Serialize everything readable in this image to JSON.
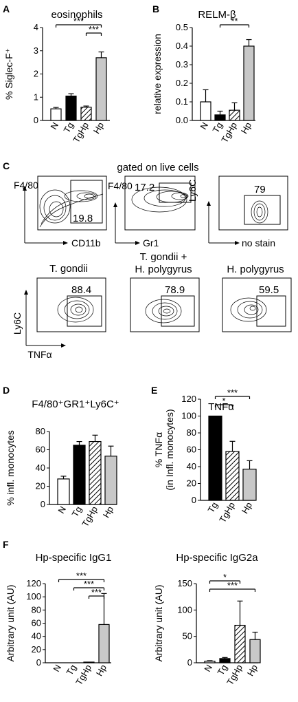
{
  "panel_letters": {
    "A": "A",
    "B": "B",
    "C": "C",
    "D": "D",
    "E": "E",
    "F": "F"
  },
  "chart_data": [
    {
      "id": "A",
      "type": "bar",
      "title": "eosinophils",
      "ylabel": "% Siglec-F⁺",
      "xlabel": "",
      "categories": [
        "N",
        "Tg",
        "TgHp",
        "Hp"
      ],
      "values": [
        0.5,
        1.05,
        0.57,
        2.7
      ],
      "errors": [
        0.06,
        0.1,
        0.05,
        0.25
      ],
      "fills": [
        "white",
        "black",
        "hatch",
        "#c8c8c8"
      ],
      "ylim": [
        0,
        4
      ],
      "yticks": [
        0,
        1,
        2,
        3,
        4
      ],
      "significance": [
        {
          "from": 0,
          "to": 3,
          "label": "***"
        },
        {
          "from": 2,
          "to": 3,
          "label": "***"
        }
      ]
    },
    {
      "id": "B",
      "type": "bar",
      "title": "RELM-β",
      "ylabel": "relative expression",
      "xlabel": "",
      "categories": [
        "N",
        "Tg",
        "TgHp",
        "Hp"
      ],
      "values": [
        0.1,
        0.03,
        0.055,
        0.4
      ],
      "errors": [
        0.065,
        0.02,
        0.04,
        0.035
      ],
      "fills": [
        "white",
        "black",
        "hatch",
        "#c8c8c8"
      ],
      "ylim": [
        0,
        0.5
      ],
      "yticks": [
        0.0,
        0.1,
        0.2,
        0.3,
        0.4,
        0.5
      ],
      "significance": [
        {
          "from": 1,
          "to": 3,
          "label": "**"
        }
      ]
    },
    {
      "id": "D",
      "type": "bar",
      "title": "F4/80⁺GR1⁺Ly6C⁺",
      "ylabel": "% infl. monocytes",
      "xlabel": "",
      "categories": [
        "N",
        "Tg",
        "TgHp",
        "Hp"
      ],
      "values": [
        28,
        65,
        69,
        53
      ],
      "errors": [
        3,
        4,
        7,
        11
      ],
      "fills": [
        "white",
        "black",
        "hatch",
        "#c8c8c8"
      ],
      "ylim": [
        0,
        80
      ],
      "yticks": [
        0,
        20,
        40,
        60,
        80
      ],
      "significance": []
    },
    {
      "id": "E",
      "type": "bar",
      "title": "TNFα",
      "ylabel": "% TNFα",
      "ylabel2": "(in Infl. monocytes)",
      "xlabel": "",
      "categories": [
        "Tg",
        "TgHp",
        "Hp"
      ],
      "values": [
        100,
        58,
        37
      ],
      "errors": [
        0,
        12,
        10
      ],
      "fills": [
        "black",
        "hatch",
        "#c8c8c8"
      ],
      "ylim": [
        0,
        120
      ],
      "yticks": [
        0,
        20,
        40,
        60,
        80,
        100,
        120
      ],
      "significance": [
        {
          "from": 0,
          "to": 2,
          "label": "***"
        },
        {
          "from": 0,
          "to": 1,
          "label": "*"
        }
      ]
    },
    {
      "id": "F1",
      "type": "bar",
      "title": "Hp-specific IgG1",
      "ylabel": "Arbitrary unit (AU)",
      "xlabel": "",
      "categories": [
        "N",
        "Tg",
        "TgHp",
        "Hp"
      ],
      "values": [
        0,
        0,
        0.5,
        58
      ],
      "errors": [
        0,
        0,
        0,
        47
      ],
      "fills": [
        "white",
        "black",
        "hatch",
        "#c8c8c8"
      ],
      "ylim": [
        0,
        120
      ],
      "yticks": [
        0,
        20,
        40,
        60,
        80,
        100,
        120
      ],
      "significance": [
        {
          "from": 0,
          "to": 3,
          "label": "***"
        },
        {
          "from": 1,
          "to": 3,
          "label": "***"
        },
        {
          "from": 2,
          "to": 3,
          "label": "***"
        }
      ]
    },
    {
      "id": "F2",
      "type": "bar",
      "title": "Hp-specific IgG2a",
      "ylabel": "Arbitrary unit (AU)",
      "xlabel": "",
      "categories": [
        "N",
        "Tg",
        "TgHp",
        "Hp"
      ],
      "values": [
        3,
        8,
        71,
        44
      ],
      "errors": [
        1,
        2,
        46,
        14
      ],
      "fills": [
        "white",
        "black",
        "hatch",
        "#c8c8c8"
      ],
      "ylim": [
        0,
        150
      ],
      "yticks": [
        0,
        50,
        100,
        150
      ],
      "significance": [
        {
          "from": 0,
          "to": 2,
          "label": "*"
        },
        {
          "from": 0,
          "to": 3,
          "label": "***"
        }
      ]
    }
  ],
  "flow": {
    "title": "gated on live cells",
    "plots": [
      {
        "id": "c1",
        "ylabel": "F4/80",
        "xlabel": "CD11b",
        "value": "19.8"
      },
      {
        "id": "c2",
        "ylabel": "F4/80",
        "xlabel": "Gr1",
        "value": "17.2"
      },
      {
        "id": "c3",
        "ylabel": "Ly6C",
        "xlabel": "no stain",
        "value": "79"
      },
      {
        "id": "c4",
        "title": "T. gondii",
        "value": "88.4"
      },
      {
        "id": "c5",
        "title": "T. gondii +",
        "title2": "H. polygyrus",
        "value": "78.9"
      },
      {
        "id": "c6",
        "title": "H. polygyrus",
        "value": "59.5"
      }
    ],
    "axis_ylabel": "Ly6C",
    "axis_xlabel": "TNFα"
  }
}
